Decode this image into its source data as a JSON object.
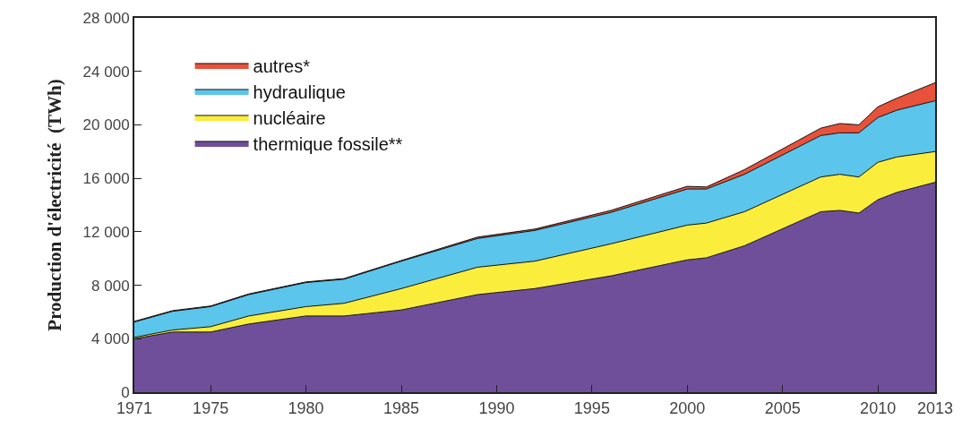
{
  "chart_data": {
    "type": "area",
    "stacked": true,
    "ylabel": "Production d'électricité  (TWh)",
    "x": [
      1971,
      1973,
      1975,
      1977,
      1980,
      1982,
      1985,
      1989,
      1992,
      1996,
      2000,
      2001,
      2003,
      2007,
      2008,
      2009,
      2010,
      2011,
      2013
    ],
    "series": [
      {
        "name": "thermique fossile**",
        "color": "#6f4f9a",
        "values": [
          4000,
          4500,
          4500,
          5100,
          5700,
          5700,
          6150,
          7300,
          7750,
          8700,
          9900,
          10050,
          10950,
          13500,
          13600,
          13400,
          14400,
          14950,
          15700
        ]
      },
      {
        "name": "nucléaire",
        "color": "#fbed3c",
        "values": [
          100,
          150,
          400,
          600,
          700,
          950,
          1600,
          2050,
          2050,
          2400,
          2600,
          2600,
          2550,
          2600,
          2700,
          2700,
          2800,
          2650,
          2300
        ]
      },
      {
        "name": "hydraulique",
        "color": "#5bc5ec",
        "values": [
          1150,
          1400,
          1500,
          1600,
          1800,
          1800,
          2050,
          2150,
          2300,
          2350,
          2700,
          2550,
          2800,
          3100,
          3100,
          3300,
          3350,
          3500,
          3800
        ]
      },
      {
        "name": "autres*",
        "color": "#e8523a",
        "values": [
          50,
          50,
          50,
          50,
          50,
          50,
          50,
          100,
          100,
          150,
          200,
          150,
          350,
          550,
          700,
          600,
          800,
          900,
          1350
        ]
      }
    ],
    "xlim": [
      1971,
      2013
    ],
    "xticks": [
      1971,
      1975,
      1980,
      1985,
      1990,
      1995,
      2000,
      2005,
      2010,
      2013
    ],
    "ylim": [
      0,
      28000
    ],
    "yticks": [
      0,
      {
        "value": 4000,
        "label": "4 000"
      },
      {
        "value": 8000,
        "label": "8 000"
      },
      {
        "value": 12000,
        "label": "12 000"
      },
      {
        "value": 16000,
        "label": "16 000"
      },
      {
        "value": 20000,
        "label": "20 000"
      },
      {
        "value": 24000,
        "label": "24 000"
      },
      {
        "value": 28000,
        "label": "28 000"
      }
    ],
    "grid": false,
    "legend": "top left",
    "marker": "none",
    "line_style": "solid"
  }
}
